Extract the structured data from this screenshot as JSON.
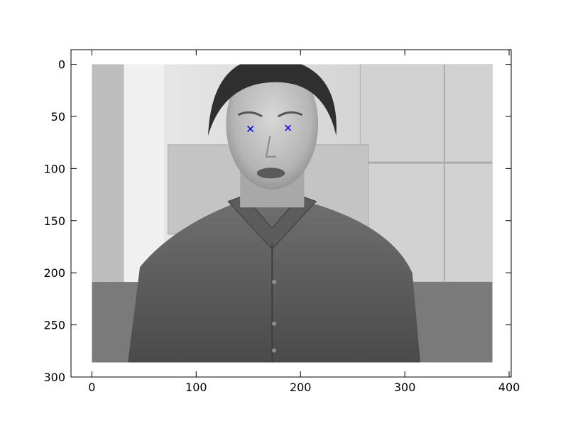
{
  "chart_data": {
    "type": "image",
    "description_label": "grayscale photo of a man with eye landmarks",
    "x_ticks": [
      0,
      100,
      200,
      300,
      400
    ],
    "y_ticks": [
      0,
      50,
      100,
      150,
      200,
      250,
      300
    ],
    "xlim": [
      -20,
      402
    ],
    "ylim": [
      300,
      -14
    ],
    "image_extent": {
      "x": [
        0,
        384
      ],
      "y": [
        0,
        286
      ]
    },
    "markers": [
      {
        "name": "left-eye",
        "x": 152,
        "y": 62,
        "symbol": "x",
        "color": "#0000ff"
      },
      {
        "name": "right-eye",
        "x": 188,
        "y": 61,
        "symbol": "x",
        "color": "#0000ff"
      }
    ]
  }
}
